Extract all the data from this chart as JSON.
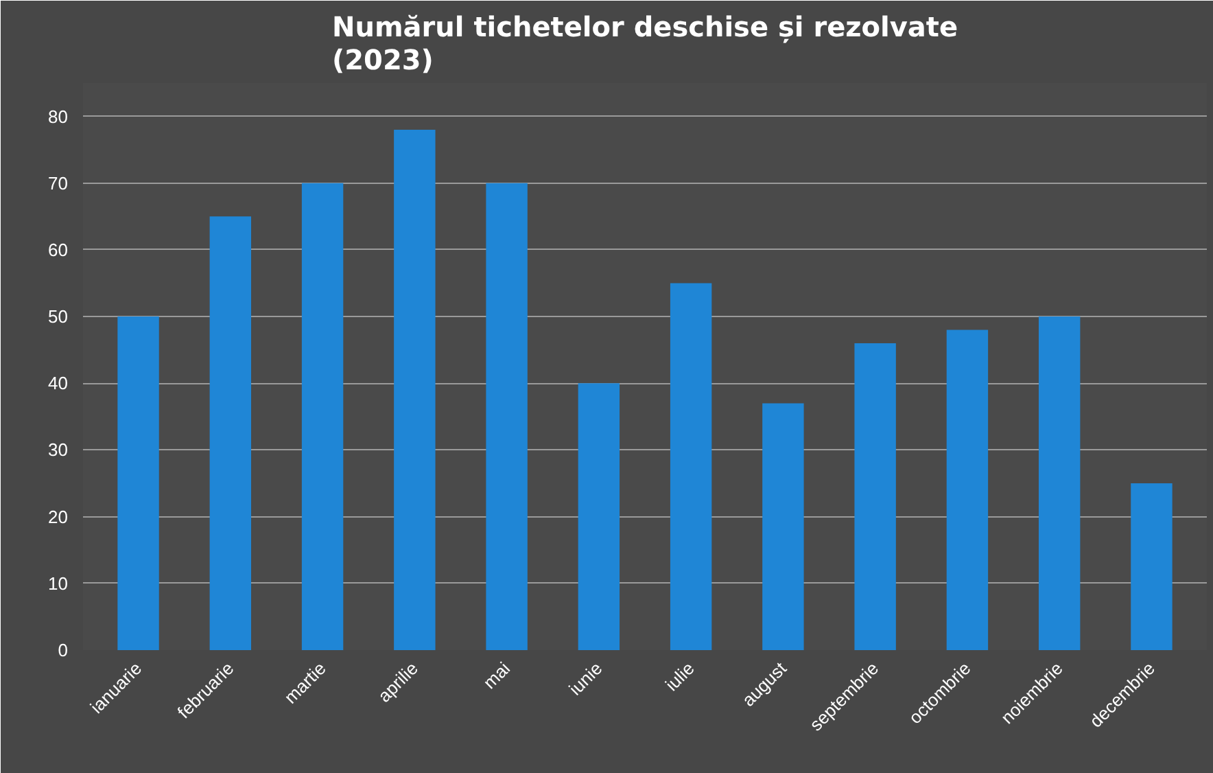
{
  "chart_data": {
    "type": "bar",
    "title": "Numărul tichetelor deschise și rezolvate\n(2023)",
    "categories": [
      "ianuarie",
      "februarie",
      "martie",
      "aprilie",
      "mai",
      "iunie",
      "iulie",
      "august",
      "septembrie",
      "octombrie",
      "noiembrie",
      "decembrie"
    ],
    "values": [
      50,
      65,
      70,
      78,
      70,
      40,
      55,
      37,
      46,
      48,
      50,
      25
    ],
    "color": "#1f86d6",
    "ylim": [
      0,
      85
    ],
    "yticks": [
      0,
      10,
      20,
      30,
      40,
      50,
      60,
      70,
      80
    ],
    "grid": "y"
  }
}
